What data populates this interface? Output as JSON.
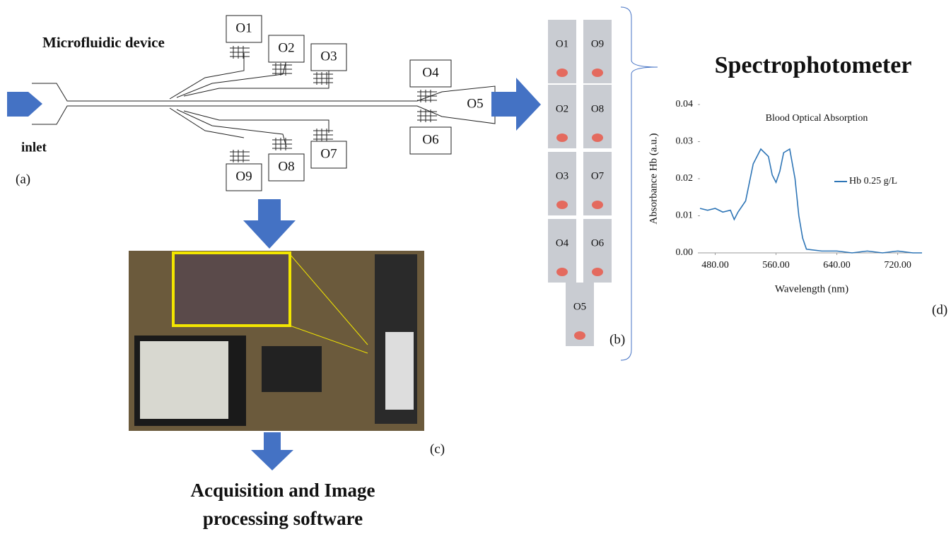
{
  "device": {
    "title": "Microfluidic device",
    "inlet": "inlet",
    "panel": "(a)",
    "outlets": [
      "O1",
      "O2",
      "O3",
      "O4",
      "O5",
      "O6",
      "O7",
      "O8",
      "O9"
    ]
  },
  "tubes": {
    "labels": [
      "O1",
      "O9",
      "O2",
      "O8",
      "O3",
      "O7",
      "O4",
      "O6",
      "O5"
    ],
    "panel": "(b)"
  },
  "setup": {
    "panel": "(c)"
  },
  "software": {
    "lines": [
      "Acquisition and Image",
      "processing software"
    ]
  },
  "spectrophotometer": {
    "title": "Spectrophotometer",
    "panel": "(d)"
  },
  "chart_data": {
    "type": "line",
    "title": "Blood Optical Absorption",
    "x_label": "Wavelength (nm)",
    "y_label": "Absorbance Hb (a.u.)",
    "xlim": [
      460,
      752
    ],
    "ylim": [
      0,
      0.04
    ],
    "xticks": [
      {
        "value": 480,
        "label": "480.00"
      },
      {
        "value": 560,
        "label": "560.00"
      },
      {
        "value": 640,
        "label": "640.00"
      },
      {
        "value": 720,
        "label": "720.00"
      }
    ],
    "yticks": [
      {
        "value": 0,
        "label": "0.00"
      },
      {
        "value": 0.01,
        "label": "0.01"
      },
      {
        "value": 0.02,
        "label": "0.02"
      },
      {
        "value": 0.03,
        "label": "0.03"
      },
      {
        "value": 0.04,
        "label": "0.04"
      }
    ],
    "x": [
      460,
      470,
      480,
      490,
      500,
      505,
      510,
      520,
      530,
      540,
      550,
      555,
      560,
      565,
      570,
      578,
      585,
      590,
      595,
      600,
      620,
      640,
      660,
      680,
      700,
      720,
      740,
      752
    ],
    "series": [
      {
        "name": "Hb 0.25 g/L",
        "color": "#2e75b6",
        "values": [
          0.012,
          0.0115,
          0.012,
          0.011,
          0.0115,
          0.009,
          0.011,
          0.014,
          0.024,
          0.028,
          0.026,
          0.021,
          0.019,
          0.022,
          0.027,
          0.028,
          0.02,
          0.01,
          0.004,
          0.001,
          0.0005,
          0.0005,
          0,
          0.0005,
          0,
          0.0005,
          0,
          0
        ]
      }
    ]
  }
}
